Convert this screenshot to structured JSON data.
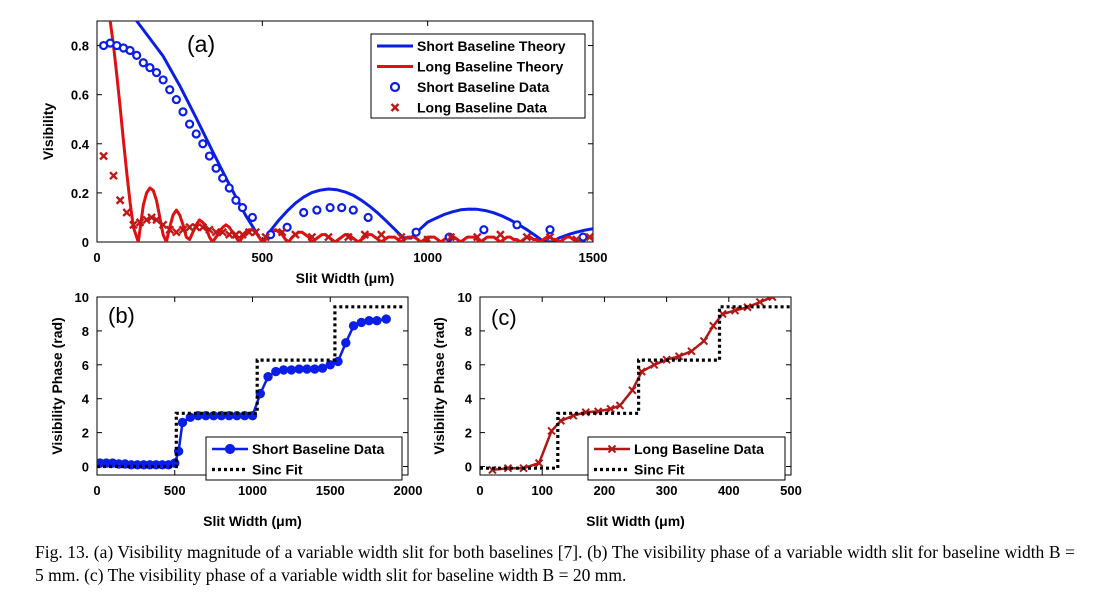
{
  "caption": "Fig. 13. (a) Visibility magnitude of a variable width slit for both baselines [7]. (b) The visibility phase of a variable width slit for baseline width B = 5 mm. (c) The visibility phase of a variable width slit for baseline width B = 20 mm.",
  "colors": {
    "short": "#0a1ee6",
    "long": "#e01010",
    "fit": "#000000"
  },
  "chart_data": [
    {
      "panel": "(a)",
      "type": "line",
      "xlabel": "Slit Width (μm)",
      "ylabel": "Visibility",
      "xlim": [
        0,
        1500
      ],
      "ylim": [
        0,
        0.9
      ],
      "xticks": [
        0,
        500,
        1000,
        1500
      ],
      "yticks": [
        0,
        0.2,
        0.4,
        0.6,
        0.8
      ],
      "ytick_labels": [
        "0",
        "0.2",
        "0.4",
        "0.6",
        "0.8"
      ],
      "legend": "top-right",
      "series": [
        {
          "name": "Short Baseline Theory",
          "style": "line",
          "color": "#0a1ee6",
          "x": [
            120,
            200,
            250,
            300,
            350,
            400,
            450,
            500,
            525,
            550,
            575,
            600,
            625,
            650,
            675,
            700,
            725,
            750,
            775,
            800,
            825,
            850,
            875,
            900,
            925,
            950,
            975,
            1000,
            1025,
            1050,
            1075,
            1100,
            1125,
            1150,
            1175,
            1200,
            1225,
            1250,
            1275,
            1300,
            1325,
            1350,
            1375,
            1400,
            1425,
            1450,
            1475,
            1500
          ],
          "y": [
            0.9,
            0.757,
            0.637,
            0.505,
            0.368,
            0.234,
            0.107,
            0.0,
            0.047,
            0.089,
            0.126,
            0.158,
            0.183,
            0.201,
            0.211,
            0.216,
            0.213,
            0.204,
            0.19,
            0.17,
            0.145,
            0.117,
            0.085,
            0.052,
            0.018,
            0.016,
            0.05,
            0.081,
            0.097,
            0.112,
            0.123,
            0.131,
            0.134,
            0.133,
            0.128,
            0.119,
            0.106,
            0.09,
            0.071,
            0.05,
            0.027,
            0.003,
            0.0,
            0.018,
            0.03,
            0.04,
            0.048,
            0.054
          ]
        },
        {
          "name": "Long Baseline Theory",
          "style": "line",
          "color": "#e01010",
          "x": [
            40,
            50,
            60,
            70,
            80,
            90,
            100,
            110,
            120,
            125,
            130,
            140,
            150,
            160,
            170,
            180,
            190,
            200,
            210,
            220,
            230,
            240,
            250,
            260,
            270,
            280,
            290,
            300,
            310,
            320,
            330,
            340,
            350,
            360,
            370,
            380,
            390,
            400,
            410,
            420,
            430,
            440,
            450,
            460,
            470,
            480,
            490,
            500,
            510,
            520,
            530,
            540,
            550,
            560,
            570,
            580,
            590,
            600,
            610,
            620,
            630,
            640,
            650,
            660,
            670,
            680,
            690,
            700,
            710,
            720,
            730,
            740,
            750,
            760,
            770,
            780,
            790,
            800,
            810,
            820,
            830,
            840,
            850,
            860,
            870,
            880,
            890,
            900,
            910,
            920,
            930,
            940,
            950,
            960,
            970,
            980,
            990,
            1000,
            1010,
            1020,
            1030,
            1040,
            1050,
            1060,
            1070,
            1080,
            1090,
            1100,
            1110,
            1120,
            1130,
            1140,
            1150,
            1160,
            1170,
            1180,
            1190,
            1200,
            1210,
            1220,
            1230,
            1240,
            1250,
            1260,
            1270,
            1280,
            1290,
            1300,
            1310,
            1320,
            1330,
            1340,
            1350,
            1360,
            1370,
            1380,
            1390,
            1400,
            1410,
            1420,
            1430,
            1440,
            1450,
            1460,
            1470,
            1480,
            1490,
            1500
          ],
          "y": [
            0.9,
            0.8,
            0.68,
            0.55,
            0.41,
            0.28,
            0.16,
            0.06,
            0.02,
            0.0,
            0.05,
            0.15,
            0.2,
            0.22,
            0.21,
            0.17,
            0.1,
            0.03,
            0.0,
            0.06,
            0.11,
            0.13,
            0.11,
            0.07,
            0.02,
            0.01,
            0.04,
            0.07,
            0.09,
            0.08,
            0.06,
            0.02,
            0.0,
            0.02,
            0.04,
            0.06,
            0.07,
            0.06,
            0.04,
            0.02,
            0.0,
            0.02,
            0.04,
            0.05,
            0.05,
            0.04,
            0.02,
            0.0,
            0.01,
            0.03,
            0.04,
            0.05,
            0.04,
            0.03,
            0.01,
            0.0,
            0.02,
            0.03,
            0.04,
            0.04,
            0.03,
            0.02,
            0.0,
            0.01,
            0.02,
            0.03,
            0.03,
            0.02,
            0.01,
            0.0,
            0.01,
            0.02,
            0.03,
            0.03,
            0.02,
            0.01,
            0.0,
            0.01,
            0.02,
            0.03,
            0.03,
            0.02,
            0.01,
            0.0,
            0.01,
            0.02,
            0.02,
            0.02,
            0.01,
            0.0,
            0.01,
            0.02,
            0.02,
            0.02,
            0.01,
            0.0,
            0.01,
            0.02,
            0.02,
            0.02,
            0.01,
            0.0,
            0.01,
            0.02,
            0.02,
            0.02,
            0.01,
            0.0,
            0.01,
            0.02,
            0.02,
            0.02,
            0.01,
            0.0,
            0.01,
            0.02,
            0.02,
            0.02,
            0.01,
            0.0,
            0.01,
            0.02,
            0.02,
            0.01,
            0.01,
            0.0,
            0.01,
            0.02,
            0.02,
            0.01,
            0.01,
            0.0,
            0.01,
            0.02,
            0.02,
            0.01,
            0.01,
            0.0,
            0.01,
            0.02,
            0.02,
            0.01,
            0.01,
            0.0,
            0.01,
            0.02,
            0.02,
            0.01
          ]
        },
        {
          "name": "Short Baseline Data",
          "style": "circle",
          "color": "#0a1ee6",
          "x": [
            20,
            40,
            60,
            80,
            100,
            120,
            140,
            160,
            180,
            200,
            220,
            240,
            260,
            280,
            300,
            320,
            340,
            360,
            380,
            400,
            420,
            440,
            470,
            525,
            575,
            625,
            665,
            705,
            740,
            775,
            820,
            965,
            1065,
            1170,
            1270,
            1370,
            1470
          ],
          "y": [
            0.8,
            0.81,
            0.8,
            0.79,
            0.78,
            0.76,
            0.73,
            0.71,
            0.69,
            0.66,
            0.62,
            0.58,
            0.53,
            0.48,
            0.44,
            0.4,
            0.35,
            0.3,
            0.26,
            0.22,
            0.17,
            0.14,
            0.1,
            0.03,
            0.06,
            0.12,
            0.13,
            0.14,
            0.14,
            0.13,
            0.1,
            0.04,
            0.02,
            0.05,
            0.07,
            0.05,
            0.02
          ]
        },
        {
          "name": "Long Baseline Data",
          "style": "x",
          "color": "#c01818",
          "x": [
            20,
            50,
            70,
            90,
            110,
            130,
            150,
            165,
            180,
            200,
            220,
            240,
            260,
            280,
            300,
            320,
            340,
            360,
            380,
            400,
            420,
            440,
            460,
            480,
            510,
            560,
            600,
            650,
            700,
            760,
            810,
            860,
            920,
            1000,
            1070,
            1150,
            1220,
            1300,
            1370,
            1450,
            1490
          ],
          "y": [
            0.35,
            0.27,
            0.17,
            0.12,
            0.07,
            0.08,
            0.09,
            0.1,
            0.09,
            0.07,
            0.05,
            0.04,
            0.05,
            0.06,
            0.06,
            0.06,
            0.05,
            0.04,
            0.04,
            0.03,
            0.03,
            0.03,
            0.04,
            0.04,
            0.02,
            0.04,
            0.03,
            0.02,
            0.02,
            0.02,
            0.03,
            0.03,
            0.02,
            0.01,
            0.02,
            0.02,
            0.03,
            0.02,
            0.02,
            0.01,
            0.02
          ]
        }
      ]
    },
    {
      "panel": "(b)",
      "type": "line",
      "xlabel": "Slit Width (μm)",
      "ylabel": "Visibility Phase (rad)",
      "xlim": [
        0,
        2000
      ],
      "ylim": [
        -0.5,
        10
      ],
      "xticks": [
        0,
        500,
        1000,
        1500,
        2000
      ],
      "yticks": [
        0,
        2,
        4,
        6,
        8,
        10
      ],
      "legend": "bottom-right",
      "series": [
        {
          "name": "Short Baseline Data",
          "style": "line-circle",
          "color": "#0a1ee6",
          "x": [
            20,
            60,
            100,
            140,
            180,
            220,
            260,
            300,
            340,
            380,
            420,
            460,
            500,
            525,
            550,
            600,
            650,
            700,
            750,
            800,
            850,
            900,
            950,
            1000,
            1050,
            1100,
            1150,
            1200,
            1250,
            1300,
            1350,
            1400,
            1450,
            1500,
            1550,
            1600,
            1650,
            1700,
            1750,
            1800,
            1860
          ],
          "y": [
            0.2,
            0.2,
            0.2,
            0.15,
            0.15,
            0.1,
            0.1,
            0.1,
            0.1,
            0.1,
            0.1,
            0.1,
            0.2,
            0.9,
            2.6,
            2.9,
            3.0,
            3.0,
            3.0,
            3.0,
            3.0,
            3.0,
            3.0,
            3.0,
            4.3,
            5.3,
            5.6,
            5.7,
            5.7,
            5.75,
            5.75,
            5.75,
            5.8,
            6.0,
            6.2,
            7.3,
            8.3,
            8.5,
            8.6,
            8.6,
            8.7
          ]
        },
        {
          "name": "Sinc Fit",
          "style": "dotted-step",
          "color": "#000000",
          "x": [
            0,
            510,
            510,
            1030,
            1030,
            1530,
            1530,
            1980
          ],
          "y": [
            0,
            0,
            3.14,
            3.14,
            6.28,
            6.28,
            9.42,
            9.42
          ]
        }
      ]
    },
    {
      "panel": "(c)",
      "type": "line",
      "xlabel": "Slit Width (μm)",
      "ylabel": "Visibility Phase (rad)",
      "xlim": [
        0,
        500
      ],
      "ylim": [
        -0.5,
        10
      ],
      "xticks": [
        0,
        100,
        200,
        300,
        400,
        500
      ],
      "yticks": [
        0,
        2,
        4,
        6,
        8,
        10
      ],
      "legend": "bottom-right",
      "series": [
        {
          "name": "Long Baseline Data",
          "style": "line-x",
          "color": "#b01818",
          "x": [
            20,
            45,
            70,
            95,
            115,
            130,
            150,
            170,
            190,
            210,
            225,
            245,
            260,
            280,
            300,
            320,
            340,
            360,
            375,
            390,
            410,
            430,
            450,
            470
          ],
          "y": [
            -0.2,
            -0.1,
            -0.1,
            0.2,
            2.1,
            2.7,
            3.0,
            3.2,
            3.25,
            3.4,
            3.6,
            4.5,
            5.6,
            6.0,
            6.3,
            6.5,
            6.8,
            7.4,
            8.3,
            9.0,
            9.2,
            9.4,
            9.7,
            10.0
          ]
        },
        {
          "name": "Sinc Fit",
          "style": "dotted-step",
          "color": "#000000",
          "x": [
            0,
            125,
            125,
            255,
            255,
            385,
            385,
            500
          ],
          "y": [
            -0.1,
            -0.1,
            3.14,
            3.14,
            6.28,
            6.28,
            9.42,
            9.42
          ]
        }
      ]
    }
  ]
}
